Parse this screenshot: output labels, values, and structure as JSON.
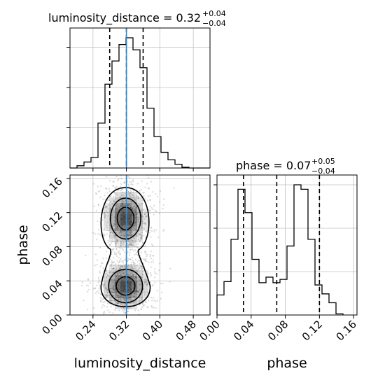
{
  "chart_data": {
    "type": "corner",
    "colors": {
      "hist": "#000000",
      "truth": "#4682b4",
      "grid": "#c0c0c0",
      "density_max": "#000000"
    },
    "params": [
      {
        "name": "luminosity_distance",
        "xlabel": "luminosity_distance",
        "title": {
          "prefix": "luminosity_distance = 0.32",
          "plus": "+0.04",
          "minus": "−0.04"
        },
        "range": [
          0.185,
          0.52
        ],
        "ticks": [
          0.24,
          0.32,
          0.4,
          0.48
        ],
        "tick_labels": [
          "0.24",
          "0.32",
          "0.40",
          "0.48"
        ],
        "truth": 0.32,
        "quantiles": [
          0.28,
          0.32,
          0.36
        ],
        "hist": {
          "edges_start": 0.185,
          "bin_width": 0.01675,
          "counts": [
            0,
            3,
            8,
            14,
            60,
            112,
            143,
            165,
            174,
            158,
            134,
            80,
            42,
            21,
            11,
            5,
            1,
            0,
            0,
            0
          ]
        }
      },
      {
        "name": "phase",
        "xlabel": "phase",
        "ylabel": "phase",
        "title": {
          "prefix": "phase = 0.07",
          "plus": "+0.05",
          "minus": "−0.04"
        },
        "range": [
          0.0,
          0.164
        ],
        "ticks": [
          0.0,
          0.04,
          0.08,
          0.12,
          0.16
        ],
        "tick_labels": [
          "0.00",
          "0.04",
          "0.08",
          "0.12",
          "0.16"
        ],
        "quantiles": [
          0.031,
          0.07,
          0.12
        ],
        "hist": {
          "edges_start": 0.0,
          "bin_width": 0.0082,
          "counts": [
            18,
            30,
            68,
            113,
            92,
            50,
            29,
            34,
            29,
            32,
            62,
            117,
            113,
            68,
            27,
            19,
            11,
            1
          ]
        }
      }
    ],
    "joint": {
      "x_param": "luminosity_distance",
      "y_param": "phase",
      "truth_x": 0.32,
      "modes": [
        {
          "cx": 0.318,
          "cy": 0.034,
          "sx": 0.028,
          "sy": 0.0135
        },
        {
          "cx": 0.318,
          "cy": 0.113,
          "sx": 0.025,
          "sy": 0.0165
        }
      ]
    }
  }
}
